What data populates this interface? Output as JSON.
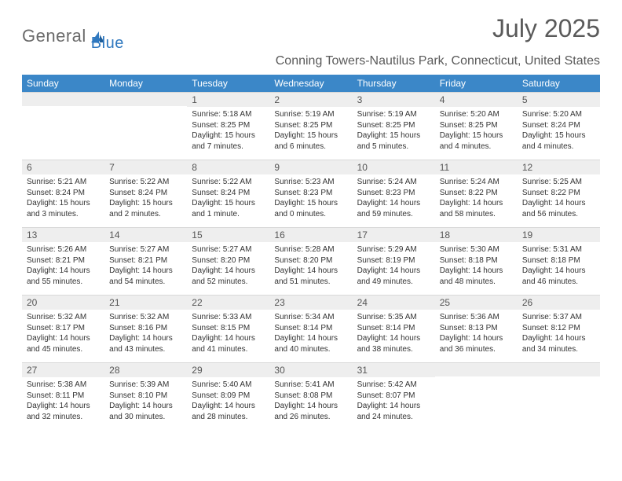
{
  "brand": {
    "part1": "General",
    "part2": "Blue"
  },
  "title": "July 2025",
  "location": "Conning Towers-Nautilus Park, Connecticut, United States",
  "colors": {
    "header_bg": "#3b87c8",
    "header_fg": "#ffffff",
    "daynum_bg": "#eeeeee",
    "text": "#333333",
    "muted": "#5a5a5a",
    "brand_blue": "#2f78bf",
    "brand_grey": "#6b6b6b"
  },
  "weekdays": [
    "Sunday",
    "Monday",
    "Tuesday",
    "Wednesday",
    "Thursday",
    "Friday",
    "Saturday"
  ],
  "weeks": [
    [
      null,
      null,
      {
        "n": "1",
        "sr": "5:18 AM",
        "ss": "8:25 PM",
        "dl": "15 hours and 7 minutes."
      },
      {
        "n": "2",
        "sr": "5:19 AM",
        "ss": "8:25 PM",
        "dl": "15 hours and 6 minutes."
      },
      {
        "n": "3",
        "sr": "5:19 AM",
        "ss": "8:25 PM",
        "dl": "15 hours and 5 minutes."
      },
      {
        "n": "4",
        "sr": "5:20 AM",
        "ss": "8:25 PM",
        "dl": "15 hours and 4 minutes."
      },
      {
        "n": "5",
        "sr": "5:20 AM",
        "ss": "8:24 PM",
        "dl": "15 hours and 4 minutes."
      }
    ],
    [
      {
        "n": "6",
        "sr": "5:21 AM",
        "ss": "8:24 PM",
        "dl": "15 hours and 3 minutes."
      },
      {
        "n": "7",
        "sr": "5:22 AM",
        "ss": "8:24 PM",
        "dl": "15 hours and 2 minutes."
      },
      {
        "n": "8",
        "sr": "5:22 AM",
        "ss": "8:24 PM",
        "dl": "15 hours and 1 minute."
      },
      {
        "n": "9",
        "sr": "5:23 AM",
        "ss": "8:23 PM",
        "dl": "15 hours and 0 minutes."
      },
      {
        "n": "10",
        "sr": "5:24 AM",
        "ss": "8:23 PM",
        "dl": "14 hours and 59 minutes."
      },
      {
        "n": "11",
        "sr": "5:24 AM",
        "ss": "8:22 PM",
        "dl": "14 hours and 58 minutes."
      },
      {
        "n": "12",
        "sr": "5:25 AM",
        "ss": "8:22 PM",
        "dl": "14 hours and 56 minutes."
      }
    ],
    [
      {
        "n": "13",
        "sr": "5:26 AM",
        "ss": "8:21 PM",
        "dl": "14 hours and 55 minutes."
      },
      {
        "n": "14",
        "sr": "5:27 AM",
        "ss": "8:21 PM",
        "dl": "14 hours and 54 minutes."
      },
      {
        "n": "15",
        "sr": "5:27 AM",
        "ss": "8:20 PM",
        "dl": "14 hours and 52 minutes."
      },
      {
        "n": "16",
        "sr": "5:28 AM",
        "ss": "8:20 PM",
        "dl": "14 hours and 51 minutes."
      },
      {
        "n": "17",
        "sr": "5:29 AM",
        "ss": "8:19 PM",
        "dl": "14 hours and 49 minutes."
      },
      {
        "n": "18",
        "sr": "5:30 AM",
        "ss": "8:18 PM",
        "dl": "14 hours and 48 minutes."
      },
      {
        "n": "19",
        "sr": "5:31 AM",
        "ss": "8:18 PM",
        "dl": "14 hours and 46 minutes."
      }
    ],
    [
      {
        "n": "20",
        "sr": "5:32 AM",
        "ss": "8:17 PM",
        "dl": "14 hours and 45 minutes."
      },
      {
        "n": "21",
        "sr": "5:32 AM",
        "ss": "8:16 PM",
        "dl": "14 hours and 43 minutes."
      },
      {
        "n": "22",
        "sr": "5:33 AM",
        "ss": "8:15 PM",
        "dl": "14 hours and 41 minutes."
      },
      {
        "n": "23",
        "sr": "5:34 AM",
        "ss": "8:14 PM",
        "dl": "14 hours and 40 minutes."
      },
      {
        "n": "24",
        "sr": "5:35 AM",
        "ss": "8:14 PM",
        "dl": "14 hours and 38 minutes."
      },
      {
        "n": "25",
        "sr": "5:36 AM",
        "ss": "8:13 PM",
        "dl": "14 hours and 36 minutes."
      },
      {
        "n": "26",
        "sr": "5:37 AM",
        "ss": "8:12 PM",
        "dl": "14 hours and 34 minutes."
      }
    ],
    [
      {
        "n": "27",
        "sr": "5:38 AM",
        "ss": "8:11 PM",
        "dl": "14 hours and 32 minutes."
      },
      {
        "n": "28",
        "sr": "5:39 AM",
        "ss": "8:10 PM",
        "dl": "14 hours and 30 minutes."
      },
      {
        "n": "29",
        "sr": "5:40 AM",
        "ss": "8:09 PM",
        "dl": "14 hours and 28 minutes."
      },
      {
        "n": "30",
        "sr": "5:41 AM",
        "ss": "8:08 PM",
        "dl": "14 hours and 26 minutes."
      },
      {
        "n": "31",
        "sr": "5:42 AM",
        "ss": "8:07 PM",
        "dl": "14 hours and 24 minutes."
      },
      null,
      null
    ]
  ],
  "labels": {
    "sunrise": "Sunrise:",
    "sunset": "Sunset:",
    "daylight": "Daylight:"
  }
}
